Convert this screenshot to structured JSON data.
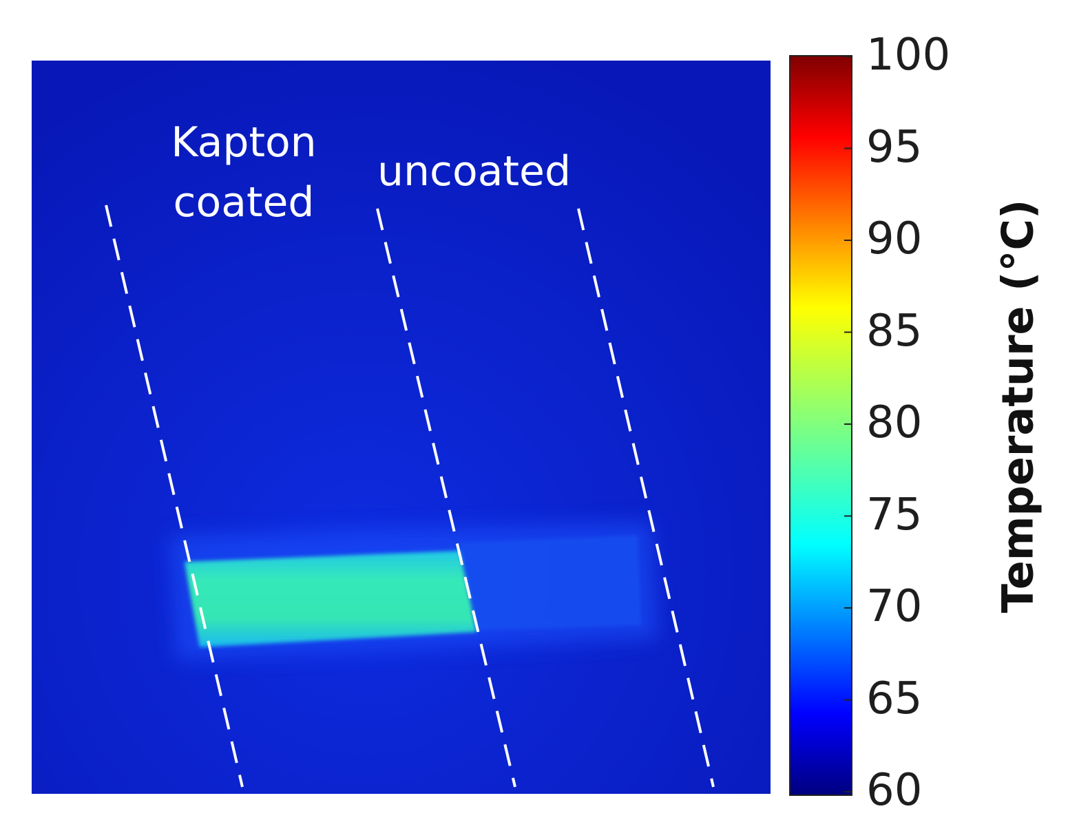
{
  "image": {
    "annotations": {
      "kapton_line1": "Kapton",
      "kapton_line2": "coated",
      "uncoated": "uncoated"
    },
    "colors": {
      "background": "#0b1fd0",
      "hot_strip": "#2ee0c0",
      "dashed_lines": "#ffffff"
    }
  },
  "colorbar": {
    "label": "Temperature (°C)",
    "min": 60,
    "max": 100,
    "ticks": [
      "100",
      "95",
      "90",
      "85",
      "80",
      "75",
      "70",
      "65",
      "60"
    ],
    "colormap": "jet"
  }
}
